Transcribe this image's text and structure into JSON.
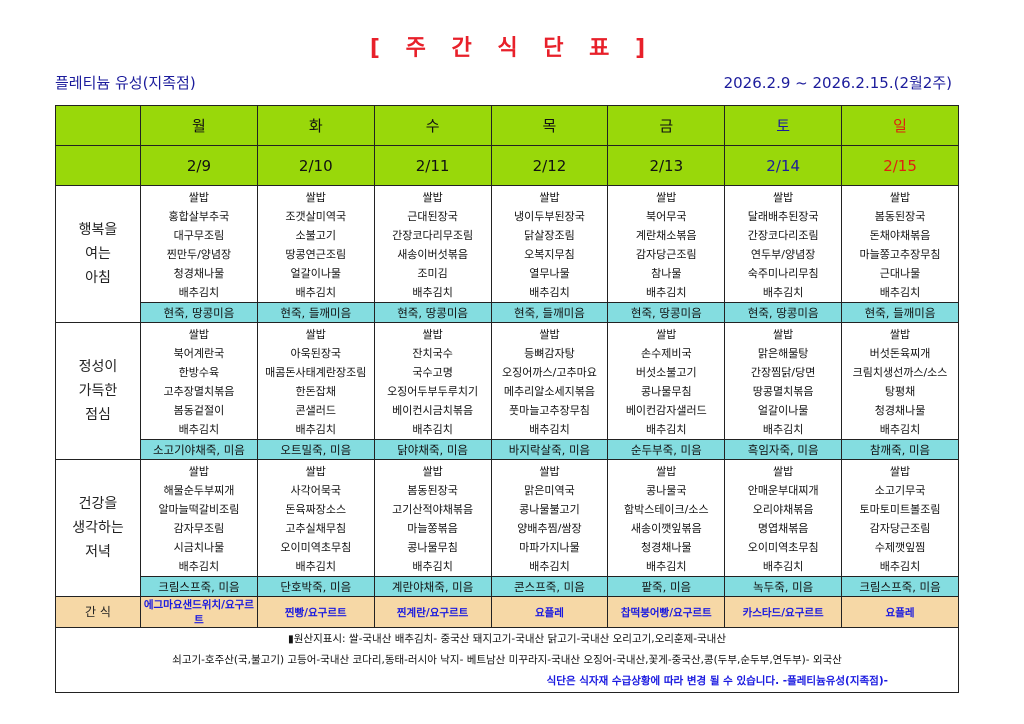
{
  "title": "[ 주 간 식 단 표 ]",
  "branch": "플레티늄 유성(지족점)",
  "period": "2026.2.9 ~ 2026.2.15.(2월2주)",
  "colors": {
    "header_green": "#99d80a",
    "porridge_cyan": "#84dde0",
    "snack_tan": "#f6d8a6",
    "title_red": "#e8202a",
    "saturday_blue": "#1c1c9c",
    "sunday_red": "#e02010"
  },
  "days": [
    "월",
    "화",
    "수",
    "목",
    "금",
    "토",
    "일"
  ],
  "dates": [
    "2/9",
    "2/10",
    "2/11",
    "2/12",
    "2/13",
    "2/14",
    "2/15"
  ],
  "meals": [
    {
      "label": [
        "행복을",
        "여는",
        "아침"
      ],
      "items": [
        [
          "쌀밥",
          "홍합살부추국",
          "대구무조림",
          "찐만두/양념장",
          "청경채나물",
          "배추김치"
        ],
        [
          "쌀밥",
          "조갯살미역국",
          "소불고기",
          "땅콩연근조림",
          "얼갈이나물",
          "배추김치"
        ],
        [
          "쌀밥",
          "근대된장국",
          "간장코다리무조림",
          "새송이버섯볶음",
          "조미김",
          "배추김치"
        ],
        [
          "쌀밥",
          "냉이두부된장국",
          "닭살장조림",
          "오복지무침",
          "열무나물",
          "배추김치"
        ],
        [
          "쌀밥",
          "북어무국",
          "계란채소볶음",
          "감자당근조림",
          "참나물",
          "배추김치"
        ],
        [
          "쌀밥",
          "달래배추된장국",
          "간장코다리조림",
          "연두부/양념장",
          "숙주미나리무침",
          "배추김치"
        ],
        [
          "쌀밥",
          "봄동된장국",
          "돈채야채볶음",
          "마늘쫑고추장무침",
          "근대나물",
          "배추김치"
        ]
      ],
      "porridge": [
        "현죽, 땅콩미음",
        "현죽, 들깨미음",
        "현죽, 땅콩미음",
        "현죽, 들깨미음",
        "현죽, 땅콩미음",
        "현죽, 땅콩미음",
        "현죽, 들깨미음"
      ]
    },
    {
      "label": [
        "정성이",
        "가득한",
        "점심"
      ],
      "items": [
        [
          "쌀밥",
          "북어계란국",
          "한방수육",
          "고추장멸치볶음",
          "봄동겉절이",
          "배추김치"
        ],
        [
          "쌀밥",
          "아욱된장국",
          "매콤돈사태계란장조림",
          "한돈잡채",
          "콘샐러드",
          "배추김치"
        ],
        [
          "쌀밥",
          "잔치국수",
          "국수고명",
          "오징어두부두루치기",
          "베이컨시금치볶음",
          "배추김치"
        ],
        [
          "쌀밥",
          "등뼈감자탕",
          "오징어까스/고추마요",
          "메추리알소세지볶음",
          "풋마늘고추장무침",
          "배추김치"
        ],
        [
          "쌀밥",
          "손수제비국",
          "버섯소불고기",
          "콩나물무침",
          "베이컨감자샐러드",
          "배추김치"
        ],
        [
          "쌀밥",
          "맑은해물탕",
          "간장찜닭/당면",
          "땅콩멸치볶음",
          "얼갈이나물",
          "배추김치"
        ],
        [
          "쌀밥",
          "버섯돈육찌개",
          "크림치생선까스/소스",
          "탕평채",
          "청경채나물",
          "배추김치"
        ]
      ],
      "porridge": [
        "소고기야채죽, 미음",
        "오트밀죽, 미음",
        "닭야채죽, 미음",
        "바지락살죽, 미음",
        "순두부죽, 미음",
        "흑임자죽, 미음",
        "참깨죽, 미음"
      ]
    },
    {
      "label": [
        "건강을",
        "생각하는",
        "저녁"
      ],
      "items": [
        [
          "쌀밥",
          "해물순두부찌개",
          "알마늘떡갈비조림",
          "감자무조림",
          "시금치나물",
          "배추김치"
        ],
        [
          "쌀밥",
          "사각어묵국",
          "돈육짜장소스",
          "고추실채무침",
          "오이미역초무침",
          "배추김치"
        ],
        [
          "쌀밥",
          "봄동된장국",
          "고기산적야채볶음",
          "마늘쫑볶음",
          "콩나물무침",
          "배추김치"
        ],
        [
          "쌀밥",
          "맑은미역국",
          "콩나물불고기",
          "양배추찜/쌈장",
          "마파가지나물",
          "배추김치"
        ],
        [
          "쌀밥",
          "콩나물국",
          "함박스테이크/소스",
          "새송이깻잎볶음",
          "청경채나물",
          "배추김치"
        ],
        [
          "쌀밥",
          "안매운부대찌개",
          "오리야채볶음",
          "명엽채볶음",
          "오이미역초무침",
          "배추김치"
        ],
        [
          "쌀밥",
          "소고기무국",
          "토마토미트볼조림",
          "감자당근조림",
          "수제깻잎찜",
          "배추김치"
        ]
      ],
      "porridge": [
        "크림스프죽, 미음",
        "단호박죽, 미음",
        "계란야채죽, 미음",
        "콘스프죽, 미음",
        "팥죽, 미음",
        "녹두죽, 미음",
        "크림스프죽, 미음"
      ]
    }
  ],
  "snack": {
    "label": "간 식",
    "items": [
      "에그마요샌드위치/요구르트",
      "찐빵/요구르트",
      "찐계란/요구르트",
      "요플레",
      "찹떡붕어빵/요구르트",
      "카스타드/요구르트",
      "요플레"
    ]
  },
  "notes": {
    "origin_line1": "▮원산지표시: 쌀-국내산   배추김치- 중국산   돼지고기-국내산   닭고기-국내산   오리고기,오리훈제-국내산",
    "origin_line2": "쇠고기-호주산(국,불고기)   고등어-국내산 코다리,동태-러시아   낙지- 베트남산 미꾸라지-국내산   오징어-국내산,꽃게-중국산,콩(두부,순두부,연두부)- 외국산",
    "notice": "식단은 식자재 수급상황에 따라 변경 될 수 있습니다.   -플레티늄유성(지족점)-"
  }
}
